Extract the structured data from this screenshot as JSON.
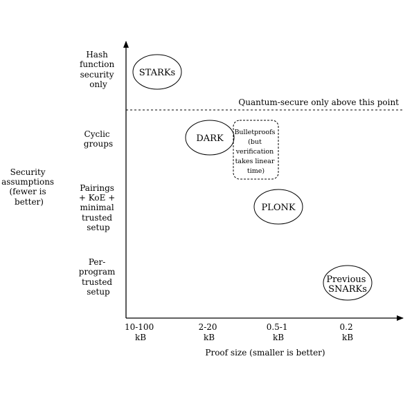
{
  "y_axis": {
    "title_lines": [
      "Security",
      "assumptions",
      "(fewer is",
      "better)"
    ],
    "levels": [
      [
        "Hash",
        "function",
        "security",
        "only"
      ],
      [
        "Cyclic",
        "groups"
      ],
      [
        "Pairings",
        "+ KoE +",
        "minimal",
        "trusted",
        "setup"
      ],
      [
        "Per-",
        "program",
        "trusted",
        "setup"
      ]
    ]
  },
  "x_axis": {
    "title": "Proof size (smaller is better)",
    "ticks": [
      [
        "10-100",
        "kB"
      ],
      [
        "2-20",
        "kB"
      ],
      [
        "0.5-1",
        "kB"
      ],
      [
        "0.2",
        "kB"
      ]
    ]
  },
  "threshold": {
    "label": "Quantum-secure only above this point"
  },
  "schemes": [
    {
      "lines": [
        "STARKs"
      ],
      "shape": "ellipse",
      "x_column": 0,
      "y_level": 0
    },
    {
      "lines": [
        "DARK"
      ],
      "shape": "ellipse",
      "x_column": 1,
      "y_level": 1
    },
    {
      "lines": [
        "Bulletproofs",
        "(but",
        "verification",
        "takes linear",
        "time)"
      ],
      "shape": "dashed-rounded-rect",
      "x_column": 2,
      "y_level": 1
    },
    {
      "lines": [
        "PLONK"
      ],
      "shape": "ellipse",
      "x_column": 2,
      "y_level": 2
    },
    {
      "lines": [
        "Previous",
        "SNARKs"
      ],
      "shape": "ellipse",
      "x_column": 3,
      "y_level": 3
    }
  ]
}
